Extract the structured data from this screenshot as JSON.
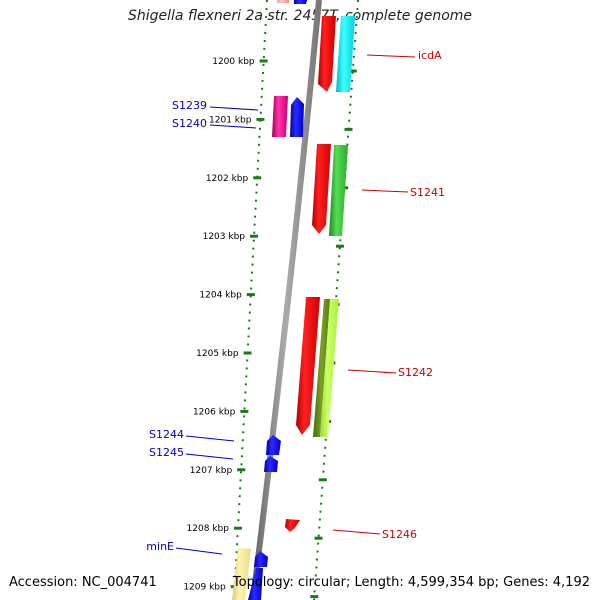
{
  "title": "Shigella flexneri 2a str. 2457T, complete genome",
  "footer": {
    "accession": "Accession: NC_004741",
    "summary": "Topology: circular; Length: 4,599,354 bp; Genes: 4,192"
  },
  "scale_labels": [
    "1200 kbp",
    "1201 kbp",
    "1202 kbp",
    "1203 kbp",
    "1204 kbp",
    "1205 kbp",
    "1206 kbp",
    "1207 kbp",
    "1208 kbp",
    "1209 kbp"
  ],
  "genes": [
    {
      "name": "icdA",
      "strand": "reverse",
      "color": "#ff0000",
      "pair_color": "#00ffff"
    },
    {
      "name": "S1239",
      "strand": "forward",
      "color": "#e6008c"
    },
    {
      "name": "S1240",
      "strand": "forward",
      "color": "#0000ff"
    },
    {
      "name": "S1241",
      "strand": "reverse",
      "color": "#ff0000",
      "pair_color": "#33cc33"
    },
    {
      "name": "S1242",
      "strand": "reverse",
      "color": "#ff0000",
      "pair_color": "#99ee33"
    },
    {
      "name": "S1244",
      "strand": "forward",
      "color": "#0000ff"
    },
    {
      "name": "S1245",
      "strand": "forward",
      "color": "#0000ff"
    },
    {
      "name": "S1246",
      "strand": "reverse",
      "color": "#ff0000"
    },
    {
      "name": "minE",
      "strand": "forward",
      "color": "#0000ff"
    }
  ],
  "colors": {
    "label_forward": "#0000cc",
    "label_reverse": "#cc0000",
    "tick": "#1a7a1a",
    "backbone": "#888888"
  }
}
